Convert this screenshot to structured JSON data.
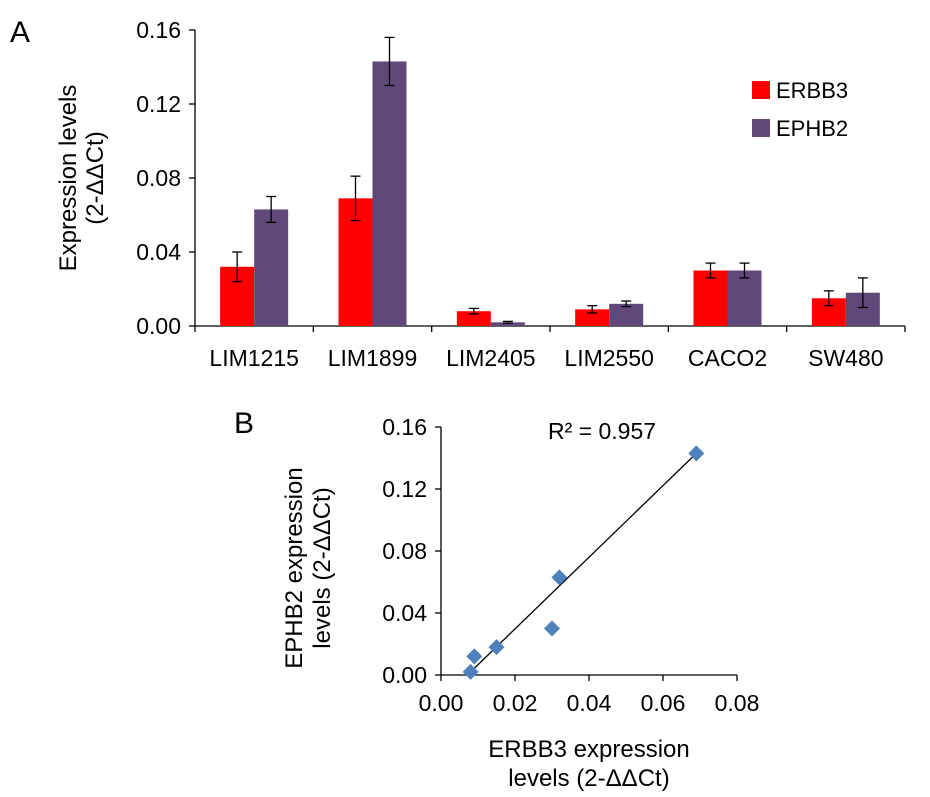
{
  "panels": {
    "a_label": "A",
    "b_label": "B"
  },
  "colors": {
    "erbb3": "#ff0000",
    "ephb2": "#60497a",
    "scatter": "#4f81bd",
    "axis": "#000000"
  },
  "chart_data": [
    {
      "type": "bar",
      "panel": "A",
      "categories": [
        "LIM1215",
        "LIM1899",
        "LIM2405",
        "LIM2550",
        "CACO2",
        "SW480"
      ],
      "series": [
        {
          "name": "ERBB3",
          "values": [
            0.032,
            0.069,
            0.008,
            0.009,
            0.03,
            0.015
          ],
          "errors": [
            0.008,
            0.012,
            0.0015,
            0.002,
            0.004,
            0.004
          ]
        },
        {
          "name": "EPHB2",
          "values": [
            0.063,
            0.143,
            0.002,
            0.012,
            0.03,
            0.018
          ],
          "errors": [
            0.007,
            0.013,
            0.0005,
            0.0015,
            0.004,
            0.008
          ]
        }
      ],
      "ylabel_lines": [
        "Expression levels",
        "(2-ΔΔCt)"
      ],
      "ylim": [
        0,
        0.16
      ],
      "yticks": [
        "0.00",
        "0.04",
        "0.08",
        "0.12",
        "0.16"
      ],
      "legend_placement": "right",
      "grid": false
    },
    {
      "type": "scatter",
      "panel": "B",
      "x": [
        0.032,
        0.069,
        0.008,
        0.009,
        0.03,
        0.015
      ],
      "y": [
        0.063,
        0.143,
        0.002,
        0.012,
        0.03,
        0.018
      ],
      "trendline": {
        "x0": 0.008,
        "y0": 0.002,
        "x1": 0.069,
        "y1": 0.143
      },
      "annotation": "R² = 0.957",
      "xlabel_lines": [
        "ERBB3 expression",
        "levels (2-ΔΔCt)"
      ],
      "ylabel_lines": [
        "EPHB2 expression",
        "levels (2-ΔΔCt)"
      ],
      "xlim": [
        0,
        0.08
      ],
      "ylim": [
        0,
        0.16
      ],
      "xticks": [
        "0.00",
        "0.02",
        "0.04",
        "0.06",
        "0.08"
      ],
      "yticks": [
        "0.00",
        "0.04",
        "0.08",
        "0.12",
        "0.16"
      ],
      "grid": false
    }
  ]
}
